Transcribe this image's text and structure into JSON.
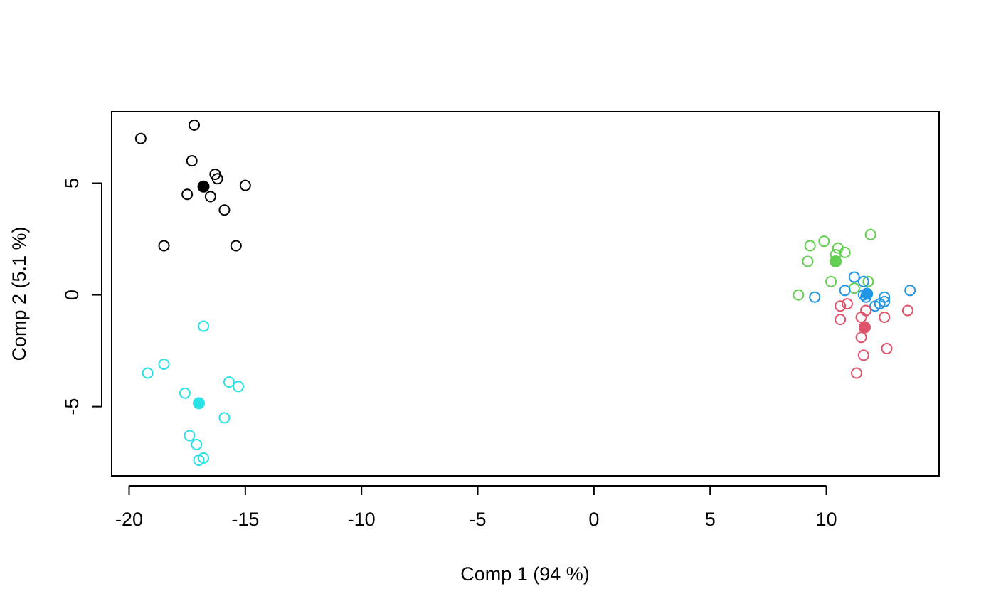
{
  "chart_data": {
    "type": "scatter",
    "title": "",
    "xlabel": "Comp 1 (94 %)",
    "ylabel": "Comp 2 (5.1 %)",
    "xlim": [
      -20.75,
      14.85
    ],
    "ylim": [
      -8.1,
      8.2
    ],
    "xticks": [
      -20,
      -15,
      -10,
      -5,
      0,
      5,
      10
    ],
    "yticks": [
      -5,
      0,
      5
    ],
    "grid": false,
    "legend": null,
    "series": [
      {
        "color": "#000000",
        "points": [
          [
            -19.5,
            7.0
          ],
          [
            -17.2,
            7.6
          ],
          [
            -17.3,
            6.0
          ],
          [
            -16.3,
            5.4
          ],
          [
            -16.2,
            5.2
          ],
          [
            -15.0,
            4.9
          ],
          [
            -17.5,
            4.5
          ],
          [
            -16.5,
            4.4
          ],
          [
            -15.9,
            3.8
          ],
          [
            -18.5,
            2.2
          ],
          [
            -15.4,
            2.2
          ]
        ],
        "centroid": [
          -16.8,
          4.85
        ]
      },
      {
        "color": "#28E2E5",
        "points": [
          [
            -16.8,
            -1.4
          ],
          [
            -18.5,
            -3.1
          ],
          [
            -19.2,
            -3.5
          ],
          [
            -15.7,
            -3.9
          ],
          [
            -15.3,
            -4.1
          ],
          [
            -17.6,
            -4.4
          ],
          [
            -15.9,
            -5.5
          ],
          [
            -17.4,
            -6.3
          ],
          [
            -17.1,
            -6.7
          ],
          [
            -16.8,
            -7.3
          ],
          [
            -17.0,
            -7.4
          ]
        ],
        "centroid": [
          -17.0,
          -4.85
        ]
      },
      {
        "color": "#61D04F",
        "points": [
          [
            11.9,
            2.7
          ],
          [
            9.9,
            2.4
          ],
          [
            9.3,
            2.2
          ],
          [
            10.5,
            2.1
          ],
          [
            10.8,
            1.9
          ],
          [
            10.4,
            1.8
          ],
          [
            9.2,
            1.5
          ],
          [
            11.8,
            0.6
          ],
          [
            10.2,
            0.6
          ],
          [
            11.2,
            0.3
          ],
          [
            8.8,
            0.0
          ]
        ],
        "centroid": [
          10.4,
          1.5
        ]
      },
      {
        "color": "#2297E6",
        "points": [
          [
            11.2,
            0.8
          ],
          [
            11.6,
            0.6
          ],
          [
            13.6,
            0.2
          ],
          [
            10.8,
            0.2
          ],
          [
            11.6,
            0.0
          ],
          [
            11.7,
            -0.1
          ],
          [
            9.5,
            -0.1
          ],
          [
            12.5,
            -0.1
          ],
          [
            12.5,
            -0.3
          ],
          [
            12.3,
            -0.4
          ],
          [
            12.1,
            -0.5
          ]
        ],
        "centroid": [
          11.75,
          0.05
        ]
      },
      {
        "color": "#DF536B",
        "points": [
          [
            10.9,
            -0.4
          ],
          [
            10.6,
            -0.5
          ],
          [
            11.7,
            -0.7
          ],
          [
            13.5,
            -0.7
          ],
          [
            11.5,
            -1.0
          ],
          [
            12.5,
            -1.0
          ],
          [
            10.6,
            -1.1
          ],
          [
            11.5,
            -1.9
          ],
          [
            12.6,
            -2.4
          ],
          [
            11.6,
            -2.7
          ],
          [
            11.3,
            -3.5
          ]
        ],
        "centroid": [
          11.65,
          -1.45
        ]
      }
    ]
  }
}
